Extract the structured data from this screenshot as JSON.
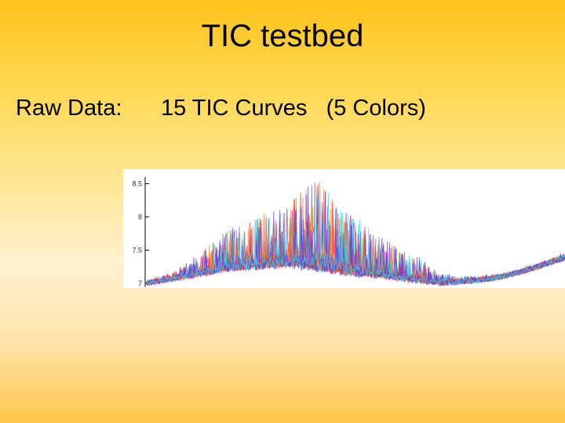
{
  "slide": {
    "title": "TIC testbed",
    "raw_label": "Raw Data:",
    "curves_label": "15 TIC Curves   (5 Colors)"
  },
  "chart_data": {
    "type": "line",
    "y_ticks": [
      "8.5",
      "8",
      "7.5",
      "7"
    ],
    "y_tick_values": [
      8.5,
      8,
      7.5,
      7
    ],
    "ylim": [
      6.95,
      8.6
    ],
    "grid": false,
    "legend": "none",
    "series_count": 15,
    "colors": [
      "#ff2a2a",
      "#ff7a1a",
      "#3a5bd9",
      "#7a2fd9",
      "#39d4e6"
    ],
    "profile": {
      "x": [
        0,
        0.05,
        0.1,
        0.15,
        0.2,
        0.25,
        0.3,
        0.35,
        0.4,
        0.45,
        0.5,
        0.55,
        0.6,
        0.65,
        0.7,
        0.75,
        0.8,
        0.85,
        0.9,
        0.95,
        1.0
      ],
      "baseline": [
        7.0,
        7.05,
        7.1,
        7.15,
        7.2,
        7.22,
        7.25,
        7.24,
        7.2,
        7.16,
        7.12,
        7.1,
        7.06,
        7.03,
        7.0,
        7.02,
        7.05,
        7.1,
        7.18,
        7.28,
        7.38
      ],
      "peak_height": [
        0.02,
        0.05,
        0.15,
        0.3,
        0.45,
        0.5,
        0.6,
        0.75,
        1.0,
        0.8,
        0.6,
        0.45,
        0.35,
        0.25,
        0.1,
        0.05,
        0.03,
        0.02,
        0.02,
        0.03,
        0.05
      ]
    }
  }
}
